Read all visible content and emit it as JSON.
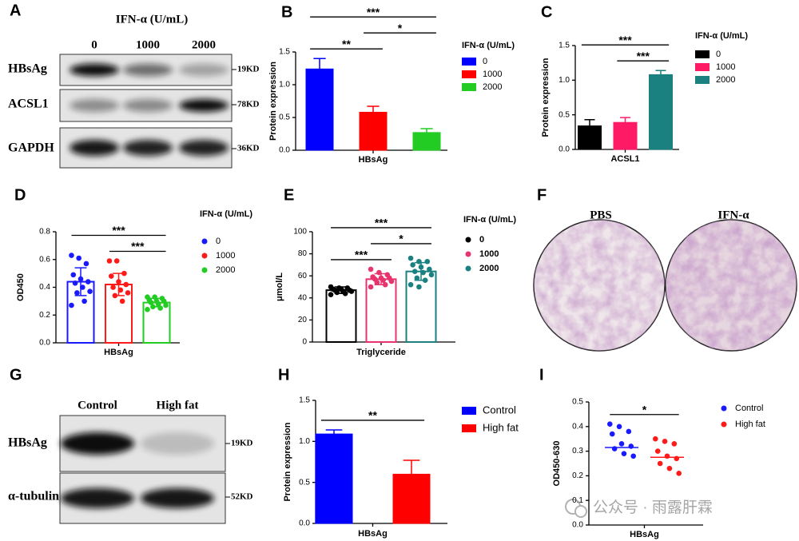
{
  "watermark": "公众号 · 雨露肝霖",
  "blots": [
    {
      "panel": "A",
      "header": "IFN-α (U/mL)",
      "lanes": [
        "0",
        "1000",
        "2000"
      ],
      "rows": [
        {
          "label": "HBsAg",
          "size": "19KD"
        },
        {
          "label": "ACSL1",
          "size": "78KD"
        },
        {
          "label": "GAPDH",
          "size": "36KD"
        }
      ]
    },
    {
      "panel": "G",
      "lanes": [
        "Control",
        "High fat"
      ],
      "rows": [
        {
          "label": "HBsAg",
          "size": "19KD"
        },
        {
          "label": "α-tubulin",
          "size": "52KD"
        }
      ]
    }
  ],
  "micrographs": {
    "panel": "F",
    "labels": [
      "PBS",
      "IFN-α"
    ]
  },
  "chart_data": [
    {
      "type": "bar",
      "panel": "B",
      "ylabel": "Protein expression",
      "categories": [
        "HBsAg"
      ],
      "legend_title": "IFN-α (U/mL)",
      "ylim": [
        0,
        1.5
      ],
      "yticks": [
        {
          "value": 0,
          "label": "0.0"
        },
        {
          "value": 0.5,
          "label": "0.5"
        },
        {
          "value": 1,
          "label": "1.0"
        },
        {
          "value": 1.5,
          "label": "1.5"
        }
      ],
      "series": [
        {
          "name": "0",
          "color": "#0000ff",
          "values": [
            1.24
          ],
          "errors": [
            0.16
          ]
        },
        {
          "name": "1000",
          "color": "#ff0000",
          "values": [
            0.58
          ],
          "errors": [
            0.09
          ]
        },
        {
          "name": "2000",
          "color": "#22cc22",
          "values": [
            0.27
          ],
          "errors": [
            0.06
          ]
        }
      ],
      "annotations": [
        {
          "text": "**",
          "between": [
            "0",
            "1000"
          ]
        },
        {
          "text": "*",
          "between": [
            "1000",
            "2000"
          ]
        },
        {
          "text": "***",
          "between": [
            "0",
            "2000"
          ]
        }
      ]
    },
    {
      "type": "bar",
      "panel": "C",
      "ylabel": "Protein expression",
      "categories": [
        "ACSL1"
      ],
      "legend_title": "IFN-α (U/mL)",
      "ylim": [
        0,
        1.5
      ],
      "yticks": [
        {
          "value": 0,
          "label": "0.0"
        },
        {
          "value": 0.5,
          "label": "0.5"
        },
        {
          "value": 1,
          "label": "1.0"
        },
        {
          "value": 1.5,
          "label": "1.5"
        }
      ],
      "series": [
        {
          "name": "0",
          "color": "#000000",
          "values": [
            0.34
          ],
          "errors": [
            0.09
          ]
        },
        {
          "name": "1000",
          "color": "#ff1a66",
          "values": [
            0.39
          ],
          "errors": [
            0.07
          ]
        },
        {
          "name": "2000",
          "color": "#1a8080",
          "values": [
            1.08
          ],
          "errors": [
            0.06
          ]
        }
      ],
      "annotations": [
        {
          "text": "***",
          "between": [
            "1000",
            "2000"
          ]
        },
        {
          "text": "***",
          "between": [
            "0",
            "2000"
          ]
        }
      ]
    },
    {
      "type": "bar_scatter",
      "panel": "D",
      "ylabel": "OD450",
      "categories": [
        "HBsAg"
      ],
      "legend_title": "IFN-α (U/mL)",
      "ylim": [
        0,
        0.8
      ],
      "yticks": [
        {
          "value": 0,
          "label": "0.0"
        },
        {
          "value": 0.2,
          "label": "0.2"
        },
        {
          "value": 0.4,
          "label": "0.4"
        },
        {
          "value": 0.6,
          "label": "0.6"
        },
        {
          "value": 0.8,
          "label": "0.8"
        }
      ],
      "series": [
        {
          "name": "0",
          "color": "#1a1aff",
          "values": [
            0.44
          ],
          "errors": [
            0.1
          ],
          "points": [
            0.63,
            0.61,
            0.57,
            0.49,
            0.46,
            0.44,
            0.43,
            0.4,
            0.37,
            0.36,
            0.3,
            0.27
          ]
        },
        {
          "name": "1000",
          "color": "#ff1a1a",
          "values": [
            0.42
          ],
          "errors": [
            0.08
          ],
          "points": [
            0.59,
            0.59,
            0.5,
            0.48,
            0.44,
            0.42,
            0.4,
            0.38,
            0.36,
            0.34,
            0.3
          ]
        },
        {
          "name": "2000",
          "color": "#22cc22",
          "values": [
            0.29
          ],
          "errors": [
            0.03
          ],
          "points": [
            0.33,
            0.33,
            0.32,
            0.31,
            0.3,
            0.3,
            0.29,
            0.28,
            0.27,
            0.26,
            0.25,
            0.24
          ]
        }
      ],
      "annotations": [
        {
          "text": "***",
          "between": [
            "1000",
            "2000"
          ]
        },
        {
          "text": "***",
          "between": [
            "0",
            "2000"
          ]
        }
      ]
    },
    {
      "type": "bar_scatter",
      "panel": "E",
      "ylabel": "μmol/L",
      "categories": [
        "Triglyceride"
      ],
      "legend_title": "IFN-α (U/mL)",
      "ylim": [
        0,
        100
      ],
      "yticks": [
        0,
        20,
        40,
        60,
        80,
        100
      ],
      "series": [
        {
          "name": "0",
          "color": "#000000",
          "values": [
            47
          ],
          "errors": [
            3
          ],
          "points": [
            50,
            49,
            49,
            48,
            48,
            47,
            47,
            46,
            46,
            45,
            44,
            43
          ]
        },
        {
          "name": "1000",
          "color": "#e8336e",
          "values": [
            57
          ],
          "errors": [
            5
          ],
          "points": [
            66,
            63,
            61,
            59,
            58,
            58,
            57,
            56,
            55,
            54,
            52,
            50
          ]
        },
        {
          "name": "2000",
          "color": "#1a8080",
          "values": [
            64
          ],
          "errors": [
            8
          ],
          "points": [
            76,
            73,
            73,
            70,
            68,
            66,
            64,
            63,
            61,
            58,
            56,
            52,
            50
          ]
        }
      ],
      "annotations": [
        {
          "text": "***",
          "between": [
            "0",
            "1000"
          ]
        },
        {
          "text": "*",
          "between": [
            "1000",
            "2000"
          ]
        },
        {
          "text": "***",
          "between": [
            "0",
            "2000"
          ]
        }
      ]
    },
    {
      "type": "bar",
      "panel": "H",
      "ylabel": "Protein expression",
      "categories": [
        "HBsAg"
      ],
      "ylim": [
        0,
        1.5
      ],
      "yticks": [
        {
          "value": 0,
          "label": "0.0"
        },
        {
          "value": 0.5,
          "label": "0.5"
        },
        {
          "value": 1,
          "label": "1.0"
        },
        {
          "value": 1.5,
          "label": "1.5"
        }
      ],
      "series": [
        {
          "name": "Control",
          "color": "#0000ff",
          "values": [
            1.09
          ],
          "errors": [
            0.05
          ]
        },
        {
          "name": "High fat",
          "color": "#ff0000",
          "values": [
            0.6
          ],
          "errors": [
            0.17
          ]
        }
      ],
      "annotations": [
        {
          "text": "**",
          "between": [
            "Control",
            "High fat"
          ]
        }
      ]
    },
    {
      "type": "dot_plot",
      "panel": "I",
      "ylabel": "OD450-630",
      "categories": [
        "HBsAg"
      ],
      "ylim": [
        0,
        0.5
      ],
      "yticks": [
        {
          "value": 0,
          "label": "0.0"
        },
        {
          "value": 0.1,
          "label": "0.1"
        },
        {
          "value": 0.2,
          "label": "0.2"
        },
        {
          "value": 0.3,
          "label": "0.3"
        },
        {
          "value": 0.4,
          "label": "0.4"
        },
        {
          "value": 0.5,
          "label": "0.5"
        }
      ],
      "series": [
        {
          "name": "Control",
          "color": "#1a1aff",
          "values": [
            0.315
          ],
          "points": [
            0.41,
            0.4,
            0.38,
            0.37,
            0.33,
            0.32,
            0.31,
            0.29,
            0.28
          ]
        },
        {
          "name": "High fat",
          "color": "#ff1a1a",
          "values": [
            0.275
          ],
          "points": [
            0.35,
            0.34,
            0.33,
            0.3,
            0.28,
            0.27,
            0.25,
            0.23,
            0.21
          ]
        }
      ],
      "annotations": [
        {
          "text": "*",
          "between": [
            "Control",
            "High fat"
          ]
        }
      ]
    }
  ]
}
